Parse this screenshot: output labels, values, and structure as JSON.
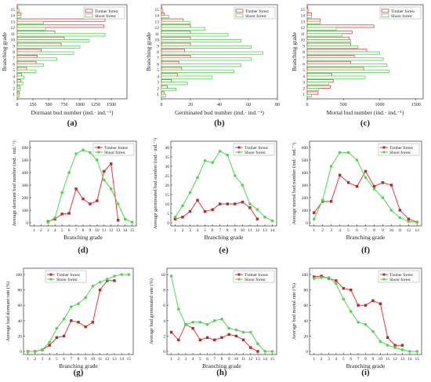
{
  "colors": {
    "timber": "#e53b3b",
    "shoot": "#4fd64f",
    "axis": "#333333"
  },
  "chart_data": [
    {
      "panel": "(a)",
      "type": "bar",
      "orientation": "horizontal",
      "ylabel": "Branching grade",
      "xlabel": "Dormant bud number (ind.· ind.⁻¹)",
      "categories": [
        1,
        2,
        3,
        4,
        5,
        6,
        7,
        8,
        9,
        10,
        11,
        12,
        13,
        14,
        15
      ],
      "xlim": [
        0,
        1750
      ],
      "xticks": [
        0,
        250,
        500,
        750,
        1000,
        1250,
        1500
      ],
      "series": [
        {
          "name": "Timber forest",
          "values": [
            30,
            40,
            55,
            70,
            150,
            300,
            320,
            380,
            700,
            750,
            600,
            1380,
            1400,
            60,
            0
          ]
        },
        {
          "name": "Shoot forest",
          "values": [
            30,
            50,
            90,
            110,
            300,
            420,
            630,
            900,
            1000,
            1150,
            1400,
            450,
            420,
            60,
            30
          ]
        }
      ],
      "legend": "top-right"
    },
    {
      "panel": "(b)",
      "type": "bar",
      "orientation": "horizontal",
      "ylabel": "Branching grade",
      "xlabel": "Germinated bud number (ind.· ind.⁻¹)",
      "categories": [
        1,
        2,
        3,
        4,
        5,
        6,
        7,
        8,
        9,
        10,
        11,
        12,
        13,
        14,
        15
      ],
      "xlim": [
        0,
        80
      ],
      "xticks": [
        0,
        20,
        40,
        60,
        80
      ],
      "series": [
        {
          "name": "Timber forest",
          "values": [
            2,
            4,
            7,
            11,
            14,
            12,
            20,
            16,
            20,
            20,
            20,
            20,
            15,
            2,
            0
          ]
        },
        {
          "name": "Shoot forest",
          "values": [
            3,
            10,
            18,
            35,
            50,
            55,
            62,
            70,
            62,
            55,
            46,
            30,
            20,
            5,
            1
          ]
        }
      ],
      "legend": "top-right"
    },
    {
      "panel": "(c)",
      "type": "bar",
      "orientation": "horizontal",
      "ylabel": "Branching grade",
      "xlabel": "Mortal bud number (ind.· ind.⁻¹)",
      "categories": [
        1,
        2,
        3,
        4,
        5,
        6,
        7,
        8,
        9,
        10,
        11,
        12,
        13,
        14,
        15
      ],
      "xlim": [
        0,
        1600
      ],
      "xticks": [
        0,
        500,
        1000,
        1500
      ],
      "series": [
        {
          "name": "Timber forest",
          "values": [
            150,
            320,
            360,
            340,
            780,
            600,
            650,
            820,
            600,
            580,
            620,
            920,
            180,
            60,
            0
          ]
        },
        {
          "name": "Shoot forest",
          "values": [
            60,
            160,
            300,
            800,
            1130,
            1100,
            1050,
            1000,
            700,
            600,
            480,
            400,
            180,
            60,
            20
          ]
        }
      ],
      "legend": "top-right"
    },
    {
      "panel": "(d)",
      "type": "line",
      "ylabel": "Average dormant bud number (ind.· ind.⁻¹)",
      "xlabel": "Branching grade",
      "xlim": [
        1,
        15
      ],
      "ylim": [
        0,
        600
      ],
      "xticks": [
        1,
        2,
        3,
        4,
        5,
        6,
        7,
        8,
        9,
        10,
        11,
        12,
        13,
        14,
        15
      ],
      "yticks": [
        0,
        100,
        200,
        300,
        400,
        500,
        600
      ],
      "series": [
        {
          "name": "Timber forest",
          "x": [
            3,
            4,
            5,
            6,
            7,
            8,
            9,
            10,
            11,
            12,
            13
          ],
          "y": [
            10,
            30,
            70,
            75,
            270,
            190,
            150,
            175,
            410,
            470,
            20
          ]
        },
        {
          "name": "Shoot forest",
          "x": [
            3,
            4,
            5,
            6,
            7,
            8,
            9,
            10,
            11,
            12,
            13,
            14,
            15
          ],
          "y": [
            5,
            40,
            240,
            400,
            550,
            580,
            560,
            500,
            340,
            270,
            150,
            30,
            5
          ]
        }
      ],
      "legend": "top-right"
    },
    {
      "panel": "(e)",
      "type": "line",
      "ylabel": "Average germinated bud number (ind.· ind.⁻¹)",
      "xlabel": "Branching grade",
      "xlim": [
        1,
        14
      ],
      "ylim": [
        0,
        40
      ],
      "xticks": [
        1,
        2,
        3,
        4,
        5,
        6,
        7,
        8,
        9,
        10,
        11,
        12,
        13,
        14
      ],
      "yticks": [
        0,
        5,
        10,
        15,
        20,
        25,
        30,
        35,
        40
      ],
      "series": [
        {
          "name": "Timber forest",
          "x": [
            1,
            2,
            3,
            4,
            5,
            6,
            7,
            8,
            9,
            10,
            11,
            12
          ],
          "y": [
            2,
            3,
            6,
            12,
            6,
            7,
            10,
            10,
            10,
            11,
            8,
            2
          ]
        },
        {
          "name": "Shoot forest",
          "x": [
            1,
            2,
            3,
            4,
            5,
            6,
            7,
            8,
            9,
            10,
            11,
            12,
            13,
            14
          ],
          "y": [
            3,
            9,
            16,
            24,
            33,
            32,
            38,
            36,
            25,
            20,
            10,
            7,
            3,
            1
          ]
        }
      ],
      "legend": "top-right"
    },
    {
      "panel": "(f)",
      "type": "line",
      "ylabel": "Average mortal bud number (ind.· ind.⁻¹)",
      "xlabel": "Branching grade",
      "xlim": [
        1,
        13
      ],
      "ylim": [
        0,
        600
      ],
      "xticks": [
        1,
        2,
        3,
        4,
        5,
        6,
        7,
        8,
        9,
        10,
        11,
        12,
        13
      ],
      "yticks": [
        0,
        100,
        200,
        300,
        400,
        500,
        600
      ],
      "series": [
        {
          "name": "Timber forest",
          "x": [
            1,
            2,
            3,
            4,
            5,
            6,
            7,
            8,
            9,
            10,
            11,
            12,
            13
          ],
          "y": [
            80,
            170,
            170,
            380,
            320,
            290,
            410,
            290,
            320,
            300,
            100,
            30,
            5
          ]
        },
        {
          "name": "Shoot forest",
          "x": [
            1,
            2,
            3,
            4,
            5,
            6,
            7,
            8,
            9,
            10,
            11,
            12,
            13
          ],
          "y": [
            30,
            180,
            450,
            560,
            560,
            500,
            360,
            270,
            200,
            100,
            40,
            10,
            5
          ]
        }
      ],
      "legend": "top-right"
    },
    {
      "panel": "(g)",
      "type": "line",
      "ylabel": "Average bud dormant rate (%)",
      "xlabel": "Branching grade",
      "xlim": [
        1,
        15
      ],
      "ylim": [
        0,
        100
      ],
      "xticks": [
        1,
        2,
        3,
        4,
        5,
        6,
        7,
        8,
        9,
        10,
        11,
        12,
        13,
        14,
        15
      ],
      "yticks": [
        0,
        20,
        40,
        60,
        80,
        100
      ],
      "series": [
        {
          "name": "Timber forest",
          "x": [
            1,
            2,
            3,
            4,
            5,
            6,
            7,
            8,
            9,
            10,
            11,
            12,
            13
          ],
          "y": [
            0,
            0,
            2,
            8,
            18,
            20,
            40,
            38,
            32,
            38,
            80,
            92,
            92
          ]
        },
        {
          "name": "Shoot forest",
          "x": [
            1,
            2,
            3,
            4,
            5,
            6,
            7,
            8,
            9,
            10,
            11,
            12,
            13,
            14,
            15
          ],
          "y": [
            0,
            0,
            2,
            12,
            30,
            42,
            58,
            62,
            70,
            85,
            90,
            94,
            98,
            100,
            100
          ]
        }
      ],
      "legend": "top-left"
    },
    {
      "panel": "(h)",
      "type": "line",
      "ylabel": "Average bud germinated rate (%)",
      "xlabel": "Branching grade",
      "xlim": [
        1,
        15
      ],
      "ylim": [
        0,
        10
      ],
      "xticks": [
        1,
        2,
        3,
        4,
        5,
        6,
        7,
        8,
        9,
        10,
        11,
        12,
        13,
        14,
        15
      ],
      "yticks": [
        0,
        2,
        4,
        6,
        8,
        10
      ],
      "series": [
        {
          "name": "Timber forest",
          "x": [
            1,
            2,
            3,
            4,
            5,
            6,
            7,
            8,
            9,
            10,
            11,
            12,
            13
          ],
          "y": [
            2.5,
            1.5,
            3.5,
            3.0,
            1.5,
            1.8,
            1.5,
            1.8,
            2.2,
            2.0,
            1.5,
            0.5,
            0
          ]
        },
        {
          "name": "Shoot forest",
          "x": [
            1,
            2,
            3,
            4,
            5,
            6,
            7,
            8,
            9,
            10,
            11,
            12,
            13,
            14,
            15
          ],
          "y": [
            9.8,
            5.5,
            3.5,
            3.8,
            3.8,
            3.5,
            4.0,
            4.2,
            3.0,
            2.8,
            2.5,
            2.5,
            1.0,
            0,
            0
          ]
        }
      ],
      "legend": "top-right"
    },
    {
      "panel": "(i)",
      "type": "line",
      "ylabel": "Average bud mortal rate (%)",
      "xlabel": "Branching grade",
      "xlim": [
        1,
        15
      ],
      "ylim": [
        0,
        100
      ],
      "xticks": [
        1,
        2,
        3,
        4,
        5,
        6,
        7,
        8,
        9,
        10,
        11,
        12,
        13,
        14,
        15
      ],
      "yticks": [
        0,
        20,
        40,
        60,
        80,
        100
      ],
      "series": [
        {
          "name": "Timber forest",
          "x": [
            1,
            2,
            3,
            4,
            5,
            6,
            7,
            8,
            9,
            10,
            11,
            12,
            13
          ],
          "y": [
            97,
            98,
            95,
            92,
            82,
            80,
            60,
            60,
            66,
            62,
            18,
            8,
            8
          ]
        },
        {
          "name": "Shoot forest",
          "x": [
            1,
            2,
            3,
            4,
            5,
            6,
            7,
            8,
            9,
            10,
            11,
            12,
            13,
            14,
            15
          ],
          "y": [
            95,
            96,
            96,
            88,
            68,
            52,
            38,
            35,
            26,
            13,
            8,
            5,
            2,
            0,
            0
          ]
        }
      ],
      "legend": "top-right"
    }
  ]
}
